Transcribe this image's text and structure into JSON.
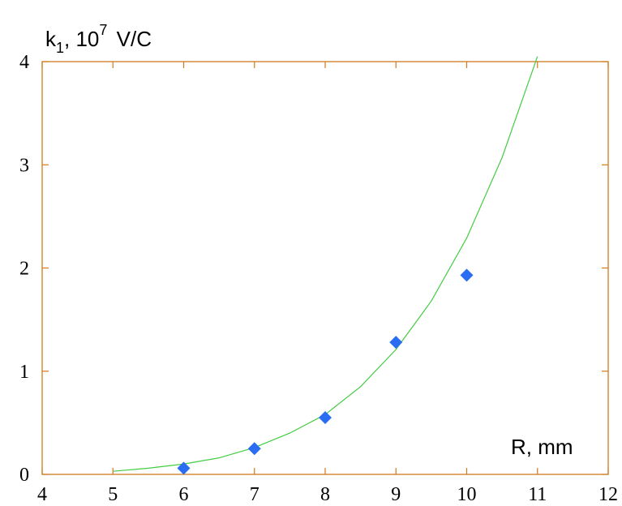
{
  "chart_data": {
    "type": "scatter",
    "ylabel": {
      "main": "k",
      "subscript": "1",
      "sep": ", 10",
      "superscript": "7",
      "unit": " V/C"
    },
    "xlabel": "R, mm",
    "xlim": [
      4,
      12
    ],
    "ylim": [
      0,
      4
    ],
    "x_ticks": [
      4,
      5,
      6,
      7,
      8,
      9,
      10,
      11,
      12
    ],
    "y_ticks": [
      0,
      1,
      2,
      3,
      4
    ],
    "grid": false,
    "series": [
      {
        "kind": "points",
        "marker": "diamond",
        "color": "#2a6cf2",
        "x": [
          6,
          7,
          8,
          9,
          10
        ],
        "y": [
          0.06,
          0.25,
          0.55,
          1.28,
          1.93
        ]
      },
      {
        "kind": "line",
        "color": "#44cc44",
        "x": [
          5,
          5.5,
          6,
          6.5,
          7,
          7.5,
          8,
          8.5,
          9,
          9.5,
          10,
          10.5,
          11
        ],
        "y": [
          0.03,
          0.06,
          0.1,
          0.16,
          0.26,
          0.4,
          0.58,
          0.85,
          1.21,
          1.68,
          2.29,
          3.07,
          4.05
        ]
      }
    ]
  }
}
